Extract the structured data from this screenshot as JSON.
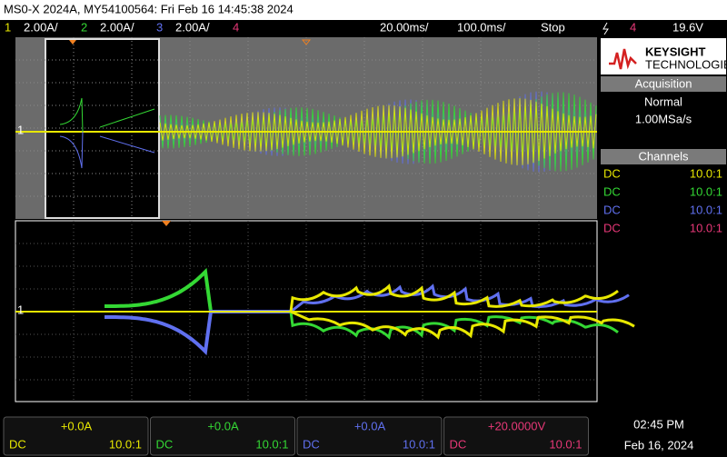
{
  "title_bar": "MS0-X 2024A, MY54100564: Fri Feb 16 14:45:38 2024",
  "status_bar": {
    "channels": [
      {
        "number": "1",
        "scale": "2.00A/"
      },
      {
        "number": "2",
        "scale": "2.00A/"
      },
      {
        "number": "3",
        "scale": "2.00A/"
      },
      {
        "number": "4"
      }
    ],
    "timebase": "20.00ms/",
    "delay": "100.0ms/",
    "run_state": "Stop",
    "trigger_source": "4",
    "trigger_level": "19.6V"
  },
  "ground_markers": [
    "1",
    "1"
  ],
  "side_panel": {
    "brand": "KEYSIGHT",
    "brand_sub": "TECHNOLOGIES",
    "acquisition": {
      "header": "Acquisition",
      "mode": "Normal",
      "rate": "1.00MSa/s"
    },
    "channels": {
      "header": "Channels",
      "rows": [
        {
          "coupling": "DC",
          "probe": "10.0:1"
        },
        {
          "coupling": "DC",
          "probe": "10.0:1"
        },
        {
          "coupling": "DC",
          "probe": "10.0:1"
        },
        {
          "coupling": "DC",
          "probe": "10.0:1"
        }
      ]
    }
  },
  "bottom_bar": {
    "channels": [
      {
        "offset": "+0.0A",
        "coupling": "DC",
        "probe": "10.0:1"
      },
      {
        "offset": "+0.0A",
        "coupling": "DC",
        "probe": "10.0:1"
      },
      {
        "offset": "+0.0A",
        "coupling": "DC",
        "probe": "10.0:1"
      },
      {
        "offset": "+20.0000V",
        "coupling": "DC",
        "probe": "10.0:1"
      }
    ],
    "time": "02:45 PM",
    "date": "Feb 16, 2024"
  }
}
